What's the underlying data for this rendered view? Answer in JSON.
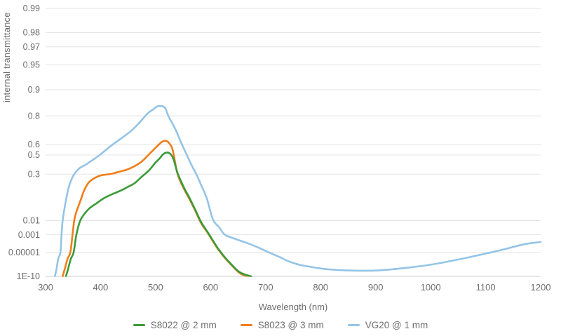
{
  "chart_data": {
    "type": "line",
    "title": "",
    "xlabel": "Wavelength (nm)",
    "ylabel": "internal transmittance",
    "grid": true,
    "legend_position": "bottom",
    "xlim": [
      300,
      1200
    ],
    "x_ticks": [
      300,
      400,
      500,
      600,
      700,
      800,
      900,
      1000,
      1100,
      1200
    ],
    "y_scale": "diabatie: position proportional to 1 - log10(-log10(tau))",
    "y_ticks": {
      "labels": [
        "0.99",
        "0.98",
        "0.97",
        "0.95",
        "0.9",
        "0.8",
        "0.6",
        "0.5",
        "0.3",
        "0.01",
        "0.001",
        "0.00001",
        "1E-10"
      ],
      "values": [
        0.99,
        0.98,
        0.97,
        0.95,
        0.9,
        0.8,
        0.6,
        0.5,
        0.3,
        0.01,
        0.001,
        1e-05,
        1e-10
      ]
    },
    "ylim": [
      1e-10,
      0.99
    ],
    "series": [
      {
        "name": "S8022 @ 2 mm",
        "color": "#3a9b38",
        "peak": {
          "wavelength_nm": 521,
          "transmittance": 0.525
        },
        "points": [
          [
            337,
            1e-10
          ],
          [
            341,
            1e-08
          ],
          [
            346,
            1e-06
          ],
          [
            351,
            1e-05
          ],
          [
            356,
            0.001
          ],
          [
            363,
            0.01
          ],
          [
            372,
            0.025
          ],
          [
            381,
            0.042
          ],
          [
            392,
            0.06
          ],
          [
            406,
            0.09
          ],
          [
            420,
            0.115
          ],
          [
            437,
            0.145
          ],
          [
            449,
            0.175
          ],
          [
            462,
            0.21
          ],
          [
            475,
            0.275
          ],
          [
            488,
            0.34
          ],
          [
            498,
            0.41
          ],
          [
            508,
            0.47
          ],
          [
            514,
            0.51
          ],
          [
            521,
            0.525
          ],
          [
            527,
            0.51
          ],
          [
            533,
            0.45
          ],
          [
            540,
            0.31
          ],
          [
            552,
            0.165
          ],
          [
            562,
            0.089
          ],
          [
            572,
            0.035
          ],
          [
            583,
            0.008
          ],
          [
            594,
            0.0018
          ],
          [
            604,
            0.00029
          ],
          [
            614,
            3e-05
          ],
          [
            626,
            1.7e-06
          ],
          [
            638,
            8e-08
          ],
          [
            651,
            2e-09
          ],
          [
            663,
            3e-10
          ],
          [
            674,
            1e-10
          ]
        ]
      },
      {
        "name": "S8023 @ 3 mm",
        "color": "#f07d1a",
        "peak": {
          "wavelength_nm": 518,
          "transmittance": 0.632
        },
        "points": [
          [
            331,
            1e-10
          ],
          [
            335,
            1e-08
          ],
          [
            340,
            1e-06
          ],
          [
            345,
            1e-05
          ],
          [
            349,
            0.001
          ],
          [
            352,
            0.01
          ],
          [
            356,
            0.028
          ],
          [
            360,
            0.05
          ],
          [
            365,
            0.09
          ],
          [
            370,
            0.145
          ],
          [
            375,
            0.19
          ],
          [
            380,
            0.225
          ],
          [
            389,
            0.26
          ],
          [
            399,
            0.285
          ],
          [
            409,
            0.295
          ],
          [
            421,
            0.305
          ],
          [
            437,
            0.33
          ],
          [
            449,
            0.35
          ],
          [
            462,
            0.385
          ],
          [
            475,
            0.435
          ],
          [
            485,
            0.49
          ],
          [
            496,
            0.55
          ],
          [
            506,
            0.6
          ],
          [
            512,
            0.625
          ],
          [
            518,
            0.632
          ],
          [
            524,
            0.615
          ],
          [
            531,
            0.55
          ],
          [
            540,
            0.3
          ],
          [
            552,
            0.155
          ],
          [
            562,
            0.082
          ],
          [
            572,
            0.032
          ],
          [
            583,
            0.0068
          ],
          [
            594,
            0.0016
          ],
          [
            604,
            0.00024
          ],
          [
            614,
            2.5e-05
          ],
          [
            626,
            1.3e-06
          ],
          [
            638,
            6e-08
          ],
          [
            651,
            1.3e-09
          ],
          [
            661,
            2e-10
          ],
          [
            672,
            1e-10
          ]
        ]
      },
      {
        "name": "VG20 @ 1 mm",
        "color": "#94c4e6",
        "peak": {
          "wavelength_nm": 505,
          "transmittance": 0.845
        },
        "points": [
          [
            317,
            1e-10
          ],
          [
            320,
            1e-08
          ],
          [
            323,
            1e-06
          ],
          [
            327,
            1e-05
          ],
          [
            329,
            0.001
          ],
          [
            331,
            0.01
          ],
          [
            336,
            0.06
          ],
          [
            342,
            0.17
          ],
          [
            350,
            0.28
          ],
          [
            361,
            0.36
          ],
          [
            373,
            0.4
          ],
          [
            383,
            0.44
          ],
          [
            396,
            0.49
          ],
          [
            412,
            0.56
          ],
          [
            425,
            0.61
          ],
          [
            440,
            0.66
          ],
          [
            456,
            0.71
          ],
          [
            470,
            0.76
          ],
          [
            485,
            0.81
          ],
          [
            495,
            0.83
          ],
          [
            505,
            0.845
          ],
          [
            517,
            0.838
          ],
          [
            523,
            0.8
          ],
          [
            536,
            0.72
          ],
          [
            546,
            0.62
          ],
          [
            556,
            0.51
          ],
          [
            565,
            0.4
          ],
          [
            574,
            0.3
          ],
          [
            583,
            0.19
          ],
          [
            593,
            0.09
          ],
          [
            604,
            0.012
          ],
          [
            615,
            0.004
          ],
          [
            626,
            0.001
          ],
          [
            645,
            0.0004
          ],
          [
            664,
            0.00017
          ],
          [
            685,
            5e-05
          ],
          [
            706,
            1e-05
          ],
          [
            725,
            2e-06
          ],
          [
            740,
            4e-07
          ],
          [
            760,
            8e-08
          ],
          [
            778,
            3e-08
          ],
          [
            800,
            1.1e-08
          ],
          [
            820,
            6e-09
          ],
          [
            845,
            4e-09
          ],
          [
            870,
            3.2e-09
          ],
          [
            900,
            3.5e-09
          ],
          [
            930,
            7e-09
          ],
          [
            960,
            1.8e-08
          ],
          [
            990,
            5e-08
          ],
          [
            1020,
            1.8e-07
          ],
          [
            1050,
            7e-07
          ],
          [
            1080,
            2.8e-06
          ],
          [
            1110,
            1e-05
          ],
          [
            1140,
            3.5e-05
          ],
          [
            1170,
            0.00011
          ],
          [
            1200,
            0.0002
          ]
        ]
      }
    ]
  },
  "colors": {
    "background": "#ffffff",
    "gridline": "#e4e4e4",
    "baseline": "#cccccc",
    "axis_text": "#6e6e6e"
  }
}
